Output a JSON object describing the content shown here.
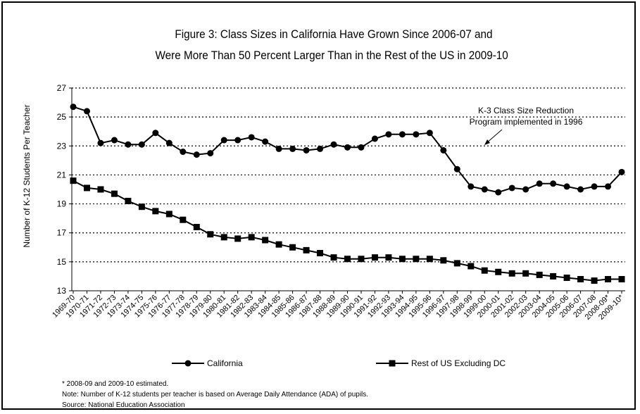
{
  "chart_data": {
    "type": "line",
    "title": [
      "Figure 3: Class Sizes in California Have Grown Since 2006-07 and",
      "Were More Than 50 Percent Larger Than in the Rest of the US in 2009-10"
    ],
    "ylabel": "Number of K-12 Students Per Teacher",
    "xlabel": "",
    "ylim": [
      13,
      27
    ],
    "yticks": [
      13,
      15,
      17,
      19,
      21,
      23,
      25,
      27
    ],
    "grid": "horizontal dotted",
    "legend_position": "bottom",
    "categories": [
      "1969-70",
      "1970-71",
      "1971-72",
      "1972-73",
      "1973-74",
      "1974-75",
      "1975-76",
      "1976-77",
      "1977-78",
      "1978-79",
      "1979-80",
      "1980-81",
      "1981-82",
      "1982-83",
      "1983-84",
      "1984-85",
      "1985-86",
      "1986-87",
      "1987-88",
      "1988-89",
      "1989-90",
      "1990-91",
      "1991-92",
      "1992-93",
      "1993-94",
      "1994-95",
      "1995-96",
      "1996-97",
      "1997-98",
      "1998-99",
      "1999-00",
      "2000-01",
      "2001-02",
      "2002-03",
      "2003-04",
      "2004-05",
      "2005-06",
      "2006-07",
      "2007-08",
      "2008-09*",
      "2009-10*"
    ],
    "series": [
      {
        "name": "California",
        "marker": "circle",
        "values": [
          25.7,
          25.4,
          23.2,
          23.4,
          23.1,
          23.1,
          23.9,
          23.2,
          22.6,
          22.4,
          22.5,
          23.4,
          23.4,
          23.6,
          23.3,
          22.8,
          22.8,
          22.7,
          22.8,
          23.1,
          22.9,
          22.9,
          23.5,
          23.8,
          23.8,
          23.8,
          23.9,
          22.7,
          21.4,
          20.2,
          20.0,
          19.8,
          20.1,
          20.0,
          20.4,
          20.4,
          20.2,
          20.0,
          20.2,
          20.2,
          21.2
        ]
      },
      {
        "name": "Rest of US Excluding DC",
        "marker": "square",
        "values": [
          20.6,
          20.1,
          20.0,
          19.7,
          19.2,
          18.8,
          18.5,
          18.3,
          17.9,
          17.4,
          16.9,
          16.7,
          16.6,
          16.7,
          16.5,
          16.2,
          16.0,
          15.8,
          15.6,
          15.3,
          15.2,
          15.2,
          15.3,
          15.3,
          15.2,
          15.2,
          15.2,
          15.1,
          14.9,
          14.7,
          14.4,
          14.3,
          14.2,
          14.2,
          14.1,
          14.0,
          13.9,
          13.8,
          13.7,
          13.8,
          13.8
        ]
      }
    ],
    "annotation": {
      "lines": [
        "K-3 Class Size Reduction",
        "Program implemented in 1996"
      ],
      "points_to": "1996-97"
    },
    "notes": [
      "* 2008-09 and 2009-10 estimated.",
      "Note: Number of K-12 students per teacher is based on Average Daily Attendance (ADA) of pupils.",
      "Source: National Education Association"
    ]
  }
}
